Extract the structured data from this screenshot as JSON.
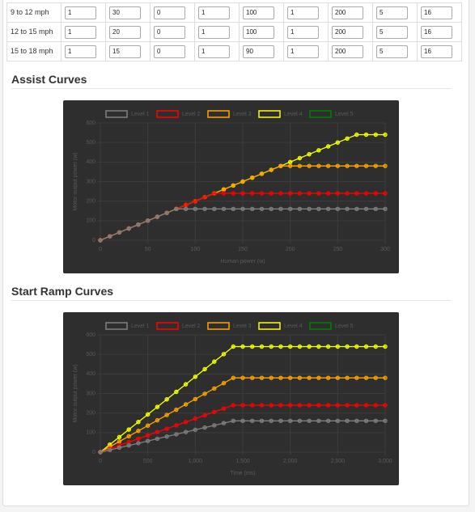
{
  "table": {
    "rows": [
      {
        "label": "9 to 12 mph",
        "values": [
          1,
          30,
          0,
          1,
          100,
          1,
          200,
          5,
          16
        ]
      },
      {
        "label": "12 to 15 mph",
        "values": [
          1,
          20,
          0,
          1,
          100,
          1,
          200,
          5,
          16
        ]
      },
      {
        "label": "15 to 18 mph",
        "values": [
          1,
          15,
          0,
          1,
          90,
          1,
          200,
          5,
          16
        ]
      }
    ]
  },
  "chart_data": [
    {
      "type": "line",
      "title": "Assist Curves",
      "x_label": "Human power (w)",
      "y_label": "Motor output power (w)",
      "x": [
        0,
        10,
        20,
        30,
        40,
        50,
        60,
        70,
        80,
        90,
        100,
        110,
        120,
        130,
        140,
        150,
        160,
        170,
        180,
        190,
        200,
        210,
        220,
        230,
        240,
        250,
        260,
        270,
        280,
        290,
        300
      ],
      "xlim": [
        0,
        300
      ],
      "xticks": [
        0,
        50,
        100,
        150,
        200,
        250,
        300
      ],
      "ylim": [
        0,
        600
      ],
      "yticks": [
        0,
        100,
        200,
        300,
        400,
        500,
        600
      ],
      "grid": true,
      "legend": "top",
      "series": [
        {
          "name": "Level 1",
          "color": "#808080",
          "values": [
            0,
            20,
            40,
            60,
            80,
            100,
            120,
            140,
            160,
            160,
            160,
            160,
            160,
            160,
            160,
            160,
            160,
            160,
            160,
            160,
            160,
            160,
            160,
            160,
            160,
            160,
            160,
            160,
            160,
            160,
            160
          ]
        },
        {
          "name": "Level 2",
          "color": "#ff0000",
          "values": [
            0,
            20,
            40,
            60,
            80,
            100,
            120,
            140,
            160,
            180,
            200,
            220,
            240,
            240,
            240,
            240,
            240,
            240,
            240,
            240,
            240,
            240,
            240,
            240,
            240,
            240,
            240,
            240,
            240,
            240,
            240
          ]
        },
        {
          "name": "Level 3",
          "color": "#ffa500",
          "values": [
            0,
            20,
            40,
            60,
            80,
            100,
            120,
            140,
            160,
            180,
            200,
            220,
            240,
            260,
            280,
            300,
            320,
            340,
            360,
            380,
            380,
            380,
            380,
            380,
            380,
            380,
            380,
            380,
            380,
            380,
            380
          ]
        },
        {
          "name": "Level 4",
          "color": "#ffff00",
          "values": [
            0,
            20,
            40,
            60,
            80,
            100,
            120,
            140,
            160,
            180,
            200,
            220,
            240,
            260,
            280,
            300,
            320,
            340,
            360,
            380,
            400,
            420,
            440,
            460,
            480,
            500,
            520,
            540,
            540,
            540,
            540
          ]
        },
        {
          "name": "Level 5",
          "color": "#008000",
          "values": [
            0,
            20,
            40,
            60,
            80,
            100,
            120,
            140,
            160,
            180,
            200,
            220,
            240,
            260,
            280,
            300,
            320,
            340,
            360,
            380,
            400,
            420,
            440,
            460,
            480,
            500,
            520,
            540,
            540,
            540,
            540
          ]
        }
      ]
    },
    {
      "type": "line",
      "title": "Start Ramp Curves",
      "x_label": "Time (ms)",
      "y_label": "Motor output power (w)",
      "x": [
        0,
        100,
        200,
        300,
        400,
        500,
        600,
        700,
        800,
        900,
        1000,
        1100,
        1200,
        1300,
        1400,
        1500,
        1600,
        1700,
        1800,
        1900,
        2000,
        2100,
        2200,
        2300,
        2400,
        2500,
        2600,
        2700,
        2800,
        2900,
        3000
      ],
      "xlim": [
        0,
        3000
      ],
      "xticks": [
        0,
        500,
        {
          "value": 1000,
          "label": "1,000"
        },
        {
          "value": 1500,
          "label": "1,500"
        },
        {
          "value": 2000,
          "label": "2,000"
        },
        {
          "value": 2500,
          "label": "2,500"
        },
        {
          "value": 3000,
          "label": "3,000"
        }
      ],
      "ylim": [
        0,
        600
      ],
      "yticks": [
        0,
        100,
        200,
        300,
        400,
        500,
        600
      ],
      "grid": true,
      "legend": "top",
      "series": [
        {
          "name": "Level 1",
          "color": "#808080",
          "values": [
            0,
            11.4,
            22.9,
            34.3,
            45.7,
            57.1,
            68.6,
            80,
            91.4,
            102.9,
            114.3,
            125.7,
            137.1,
            148.6,
            160,
            160,
            160,
            160,
            160,
            160,
            160,
            160,
            160,
            160,
            160,
            160,
            160,
            160,
            160,
            160,
            160
          ]
        },
        {
          "name": "Level 2",
          "color": "#ff0000",
          "values": [
            0,
            17.1,
            34.3,
            51.4,
            68.6,
            85.7,
            102.9,
            120,
            137.1,
            154.3,
            171.4,
            188.6,
            205.7,
            222.9,
            240,
            240,
            240,
            240,
            240,
            240,
            240,
            240,
            240,
            240,
            240,
            240,
            240,
            240,
            240,
            240,
            240
          ]
        },
        {
          "name": "Level 3",
          "color": "#ffa500",
          "values": [
            0,
            27.1,
            54.3,
            81.4,
            108.6,
            135.7,
            162.9,
            190,
            217.1,
            244.3,
            271.4,
            298.6,
            325.7,
            352.9,
            380,
            380,
            380,
            380,
            380,
            380,
            380,
            380,
            380,
            380,
            380,
            380,
            380,
            380,
            380,
            380,
            380
          ]
        },
        {
          "name": "Level 4",
          "color": "#ffff00",
          "values": [
            0,
            38.6,
            77.1,
            115.7,
            154.3,
            192.9,
            231.4,
            270,
            308.6,
            347.1,
            385.7,
            424.3,
            462.9,
            501.4,
            540,
            540,
            540,
            540,
            540,
            540,
            540,
            540,
            540,
            540,
            540,
            540,
            540,
            540,
            540,
            540,
            540
          ]
        },
        {
          "name": "Level 5",
          "color": "#008000",
          "values": [
            0,
            38.6,
            77.1,
            115.7,
            154.3,
            192.9,
            231.4,
            270,
            308.6,
            347.1,
            385.7,
            424.3,
            462.9,
            501.4,
            540,
            540,
            540,
            540,
            540,
            540,
            540,
            540,
            540,
            540,
            540,
            540,
            540,
            540,
            540,
            540,
            540
          ]
        }
      ]
    }
  ]
}
